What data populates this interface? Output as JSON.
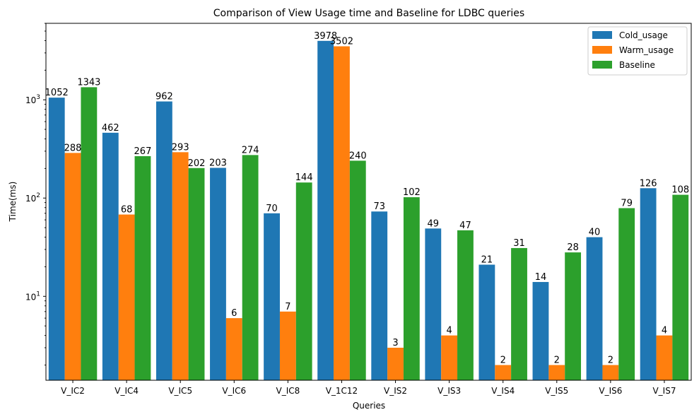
{
  "chart_data": {
    "type": "bar",
    "title": "Comparison of View Usage time and Baseline for LDBC queries",
    "xlabel": "Queries",
    "ylabel": "Time(ms)",
    "yscale": "log",
    "ylim": [
      1.4,
      6000
    ],
    "y_ticks": [
      {
        "value": 10,
        "base": "10",
        "exp": "1"
      },
      {
        "value": 100,
        "base": "10",
        "exp": "2"
      },
      {
        "value": 1000,
        "base": "10",
        "exp": "3"
      }
    ],
    "legend_position": "top-right",
    "grid": false,
    "categories": [
      "V_IC2",
      "V_IC4",
      "V_IC5",
      "V_IC6",
      "V_IC8",
      "V_1C12",
      "V_IS2",
      "V_IS3",
      "V_IS4",
      "V_IS5",
      "V_IS6",
      "V_IS7"
    ],
    "series": [
      {
        "name": "Cold_usage",
        "color": "#1f77b4",
        "values": [
          1052,
          462,
          962,
          203,
          70,
          3978,
          73,
          49,
          21,
          14,
          40,
          126
        ]
      },
      {
        "name": "Warm_usage",
        "color": "#ff7f0e",
        "values": [
          288,
          68,
          293,
          6,
          7,
          3502,
          3,
          4,
          2,
          2,
          2,
          4
        ]
      },
      {
        "name": "Baseline",
        "color": "#2ca02c",
        "values": [
          1343,
          267,
          202,
          274,
          144,
          240,
          102,
          47,
          31,
          28,
          79,
          108
        ]
      }
    ]
  }
}
